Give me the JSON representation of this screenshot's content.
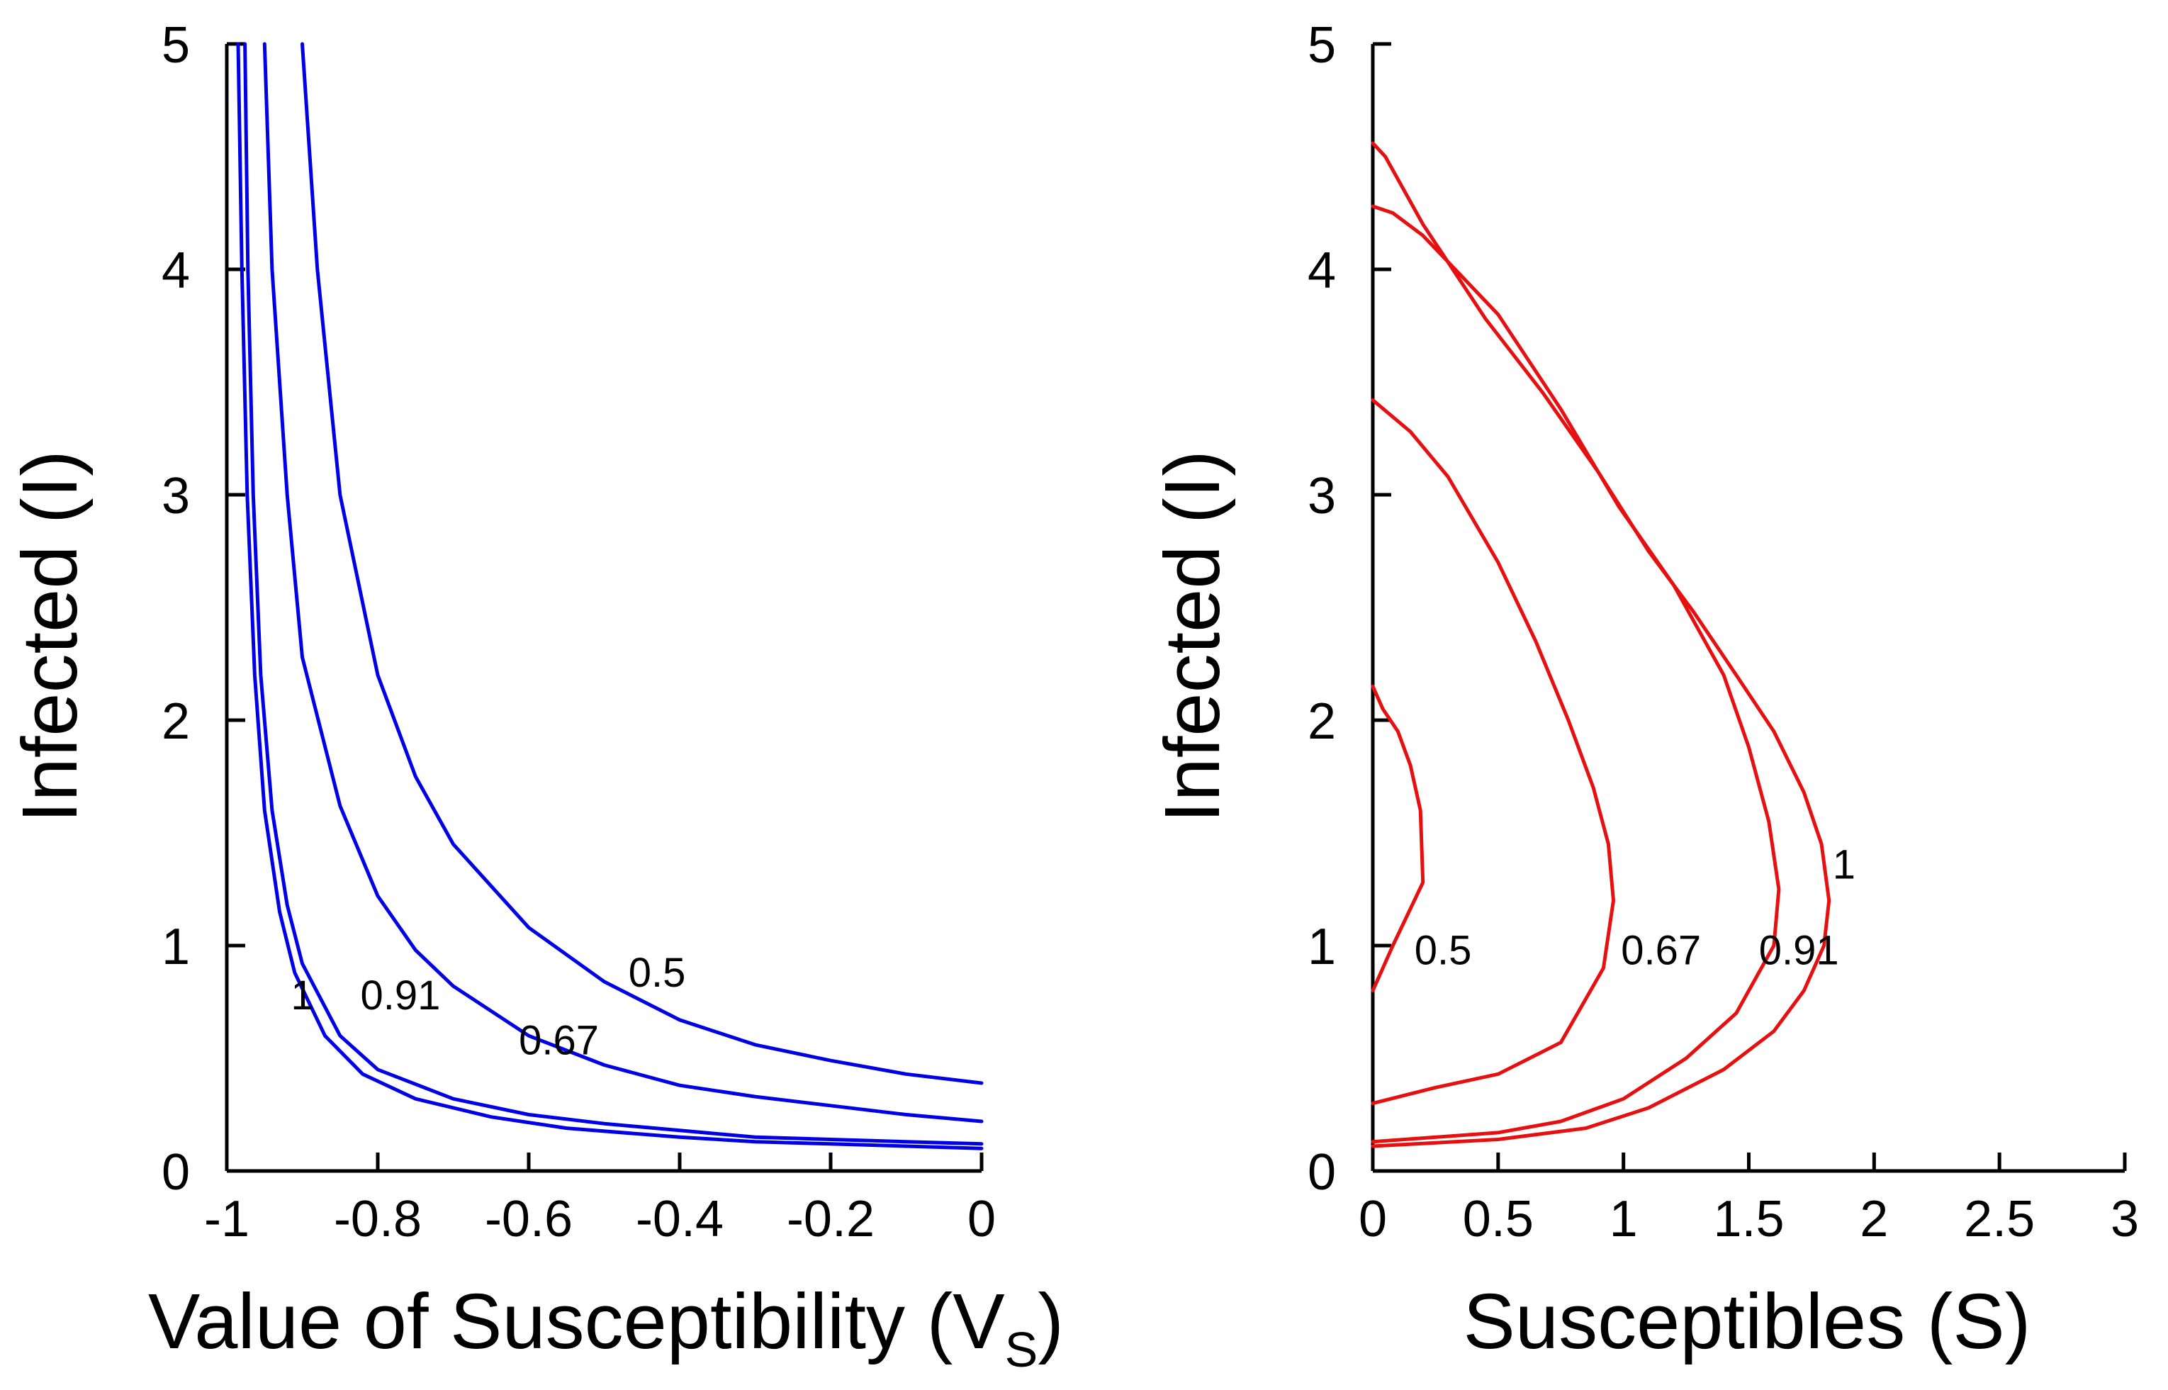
{
  "chart_data": [
    {
      "type": "line",
      "xlabel": "Value of Susceptibility (V",
      "xlabel_subscript": "S",
      "xlabel_close": ")",
      "ylabel": "Infected (I)",
      "xlim": [
        -1,
        0
      ],
      "ylim": [
        0,
        5
      ],
      "x_ticks": [
        -1,
        -0.8,
        -0.6,
        -0.4,
        -0.2,
        0
      ],
      "x_tick_labels": [
        "-1",
        "-0.8",
        "-0.6",
        "-0.4",
        "-0.2",
        "0"
      ],
      "y_ticks": [
        0,
        1,
        2,
        3,
        4,
        5
      ],
      "y_tick_labels": [
        "0",
        "1",
        "2",
        "3",
        "4",
        "5"
      ],
      "color": "#0000e6",
      "series": [
        {
          "name": "0.5",
          "label": "0.5",
          "label_at": [
            -0.43,
            0.88
          ],
          "points": [
            [
              -0.9,
              5.0
            ],
            [
              -0.88,
              4.0
            ],
            [
              -0.85,
              3.0
            ],
            [
              -0.8,
              2.2
            ],
            [
              -0.75,
              1.75
            ],
            [
              -0.7,
              1.45
            ],
            [
              -0.6,
              1.08
            ],
            [
              -0.5,
              0.84
            ],
            [
              -0.4,
              0.67
            ],
            [
              -0.3,
              0.56
            ],
            [
              -0.2,
              0.49
            ],
            [
              -0.1,
              0.43
            ],
            [
              0,
              0.39
            ]
          ]
        },
        {
          "name": "0.67",
          "label": "0.67",
          "label_at": [
            -0.56,
            0.58
          ],
          "points": [
            [
              -0.95,
              5.0
            ],
            [
              -0.94,
              4.0
            ],
            [
              -0.92,
              3.0
            ],
            [
              -0.9,
              2.28
            ],
            [
              -0.85,
              1.62
            ],
            [
              -0.8,
              1.22
            ],
            [
              -0.75,
              0.98
            ],
            [
              -0.7,
              0.82
            ],
            [
              -0.6,
              0.6
            ],
            [
              -0.5,
              0.47
            ],
            [
              -0.4,
              0.38
            ],
            [
              -0.3,
              0.33
            ],
            [
              -0.2,
              0.29
            ],
            [
              -0.1,
              0.25
            ],
            [
              0,
              0.22
            ]
          ]
        },
        {
          "name": "0.91",
          "label": "0.91",
          "label_at": [
            -0.77,
            0.78
          ],
          "points": [
            [
              -0.976,
              5.0
            ],
            [
              -0.972,
              4.0
            ],
            [
              -0.965,
              3.0
            ],
            [
              -0.955,
              2.2
            ],
            [
              -0.94,
              1.6
            ],
            [
              -0.92,
              1.18
            ],
            [
              -0.9,
              0.92
            ],
            [
              -0.85,
              0.6
            ],
            [
              -0.8,
              0.45
            ],
            [
              -0.7,
              0.32
            ],
            [
              -0.6,
              0.25
            ],
            [
              -0.5,
              0.21
            ],
            [
              -0.4,
              0.18
            ],
            [
              -0.3,
              0.15
            ],
            [
              -0.2,
              0.14
            ],
            [
              -0.1,
              0.13
            ],
            [
              0,
              0.12
            ]
          ]
        },
        {
          "name": "1",
          "label": "1",
          "label_at": [
            -0.9,
            0.78
          ],
          "points": [
            [
              -0.985,
              5.0
            ],
            [
              -0.98,
              4.0
            ],
            [
              -0.973,
              3.0
            ],
            [
              -0.963,
              2.2
            ],
            [
              -0.95,
              1.6
            ],
            [
              -0.93,
              1.15
            ],
            [
              -0.91,
              0.88
            ],
            [
              -0.87,
              0.6
            ],
            [
              -0.82,
              0.43
            ],
            [
              -0.75,
              0.32
            ],
            [
              -0.65,
              0.24
            ],
            [
              -0.55,
              0.19
            ],
            [
              -0.4,
              0.15
            ],
            [
              -0.3,
              0.13
            ],
            [
              -0.2,
              0.12
            ],
            [
              -0.1,
              0.11
            ],
            [
              0,
              0.1
            ]
          ]
        }
      ]
    },
    {
      "type": "line",
      "xlabel": "Susceptibles (S)",
      "ylabel": "Infected (I)",
      "xlim": [
        0,
        3
      ],
      "ylim": [
        0,
        5
      ],
      "x_ticks": [
        0,
        0.5,
        1,
        1.5,
        2,
        2.5,
        3
      ],
      "x_tick_labels": [
        "0",
        "0.5",
        "1",
        "1.5",
        "2",
        "2.5",
        "3"
      ],
      "y_ticks": [
        0,
        1,
        2,
        3,
        4,
        5
      ],
      "y_tick_labels": [
        "0",
        "1",
        "2",
        "3",
        "4",
        "5"
      ],
      "color": "#e61010",
      "series": [
        {
          "name": "0.5",
          "label": "0.5",
          "label_at": [
            0.28,
            0.98
          ],
          "points": [
            [
              0,
              0.8
            ],
            [
              0.08,
              1.0
            ],
            [
              0.2,
              1.28
            ],
            [
              0.19,
              1.6
            ],
            [
              0.15,
              1.8
            ],
            [
              0.1,
              1.95
            ],
            [
              0.04,
              2.05
            ],
            [
              0,
              2.15
            ]
          ]
        },
        {
          "name": "0.67",
          "label": "0.67",
          "label_at": [
            1.15,
            0.98
          ],
          "points": [
            [
              0,
              0.3
            ],
            [
              0.25,
              0.37
            ],
            [
              0.5,
              0.43
            ],
            [
              0.75,
              0.57
            ],
            [
              0.92,
              0.9
            ],
            [
              0.96,
              1.2
            ],
            [
              0.94,
              1.45
            ],
            [
              0.88,
              1.7
            ],
            [
              0.78,
              2.0
            ],
            [
              0.65,
              2.35
            ],
            [
              0.5,
              2.7
            ],
            [
              0.3,
              3.08
            ],
            [
              0.15,
              3.28
            ],
            [
              0,
              3.42
            ]
          ]
        },
        {
          "name": "0.91",
          "label": "0.91",
          "label_at": [
            1.7,
            0.98
          ],
          "points": [
            [
              0,
              0.13
            ],
            [
              0.5,
              0.17
            ],
            [
              0.75,
              0.22
            ],
            [
              1.0,
              0.32
            ],
            [
              1.25,
              0.5
            ],
            [
              1.45,
              0.7
            ],
            [
              1.6,
              1.0
            ],
            [
              1.62,
              1.25
            ],
            [
              1.58,
              1.55
            ],
            [
              1.5,
              1.88
            ],
            [
              1.4,
              2.2
            ],
            [
              1.2,
              2.6
            ],
            [
              0.98,
              2.95
            ],
            [
              0.75,
              3.38
            ],
            [
              0.5,
              3.8
            ],
            [
              0.2,
              4.15
            ],
            [
              0.08,
              4.25
            ],
            [
              0,
              4.28
            ]
          ]
        },
        {
          "name": "1",
          "label": "1",
          "label_at": [
            1.88,
            1.36
          ],
          "points": [
            [
              0,
              0.11
            ],
            [
              0.5,
              0.14
            ],
            [
              0.85,
              0.19
            ],
            [
              1.1,
              0.28
            ],
            [
              1.4,
              0.45
            ],
            [
              1.6,
              0.62
            ],
            [
              1.72,
              0.8
            ],
            [
              1.8,
              1.0
            ],
            [
              1.82,
              1.2
            ],
            [
              1.79,
              1.45
            ],
            [
              1.72,
              1.68
            ],
            [
              1.6,
              1.95
            ],
            [
              1.45,
              2.2
            ],
            [
              1.28,
              2.48
            ],
            [
              1.1,
              2.75
            ],
            [
              0.9,
              3.1
            ],
            [
              0.68,
              3.45
            ],
            [
              0.45,
              3.78
            ],
            [
              0.2,
              4.2
            ],
            [
              0.05,
              4.5
            ],
            [
              0,
              4.56
            ]
          ]
        }
      ]
    }
  ]
}
